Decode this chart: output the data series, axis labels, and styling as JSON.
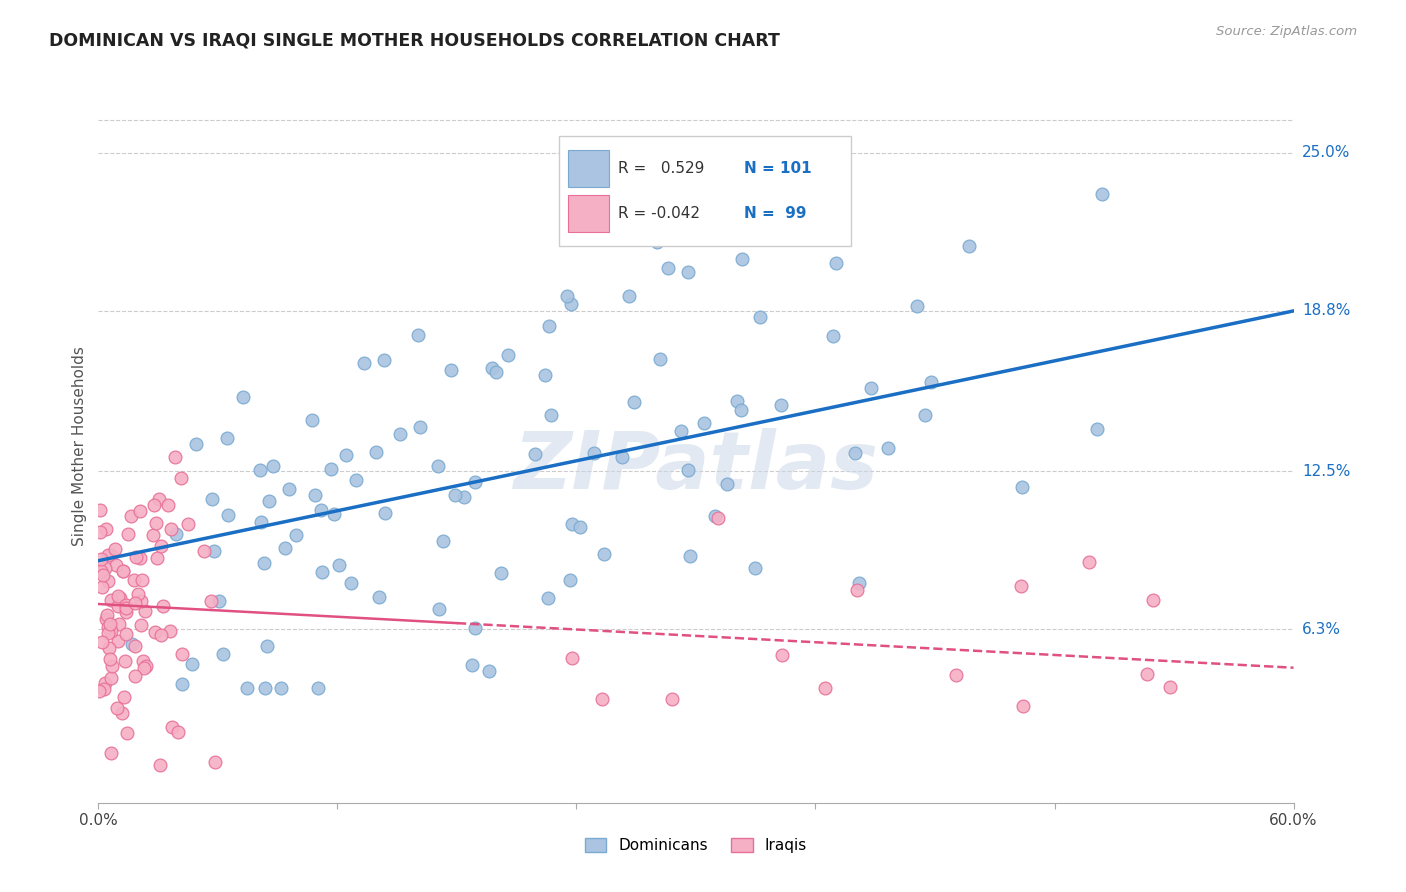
{
  "title": "DOMINICAN VS IRAQI SINGLE MOTHER HOUSEHOLDS CORRELATION CHART",
  "source": "Source: ZipAtlas.com",
  "ylabel": "Single Mother Households",
  "watermark": "ZIPatlas",
  "xlim": [
    0.0,
    0.6
  ],
  "ylim": [
    -0.005,
    0.275
  ],
  "yticks": [
    0.063,
    0.125,
    0.188,
    0.25
  ],
  "ytick_labels": [
    "6.3%",
    "12.5%",
    "18.8%",
    "25.0%"
  ],
  "dominican_color": "#aac4e2",
  "dominican_edge": "#7aaad0",
  "iraqi_color": "#f5b0c5",
  "iraqi_edge": "#e87098",
  "line_dominican": "#1a6fc4",
  "line_iraqi": "#e05080",
  "grid_color": "#cccccc",
  "background": "#ffffff",
  "seed": 12345,
  "dom_line_y0": 0.09,
  "dom_line_y1": 0.188,
  "irq_line_y0": 0.073,
  "irq_line_y1": 0.048
}
